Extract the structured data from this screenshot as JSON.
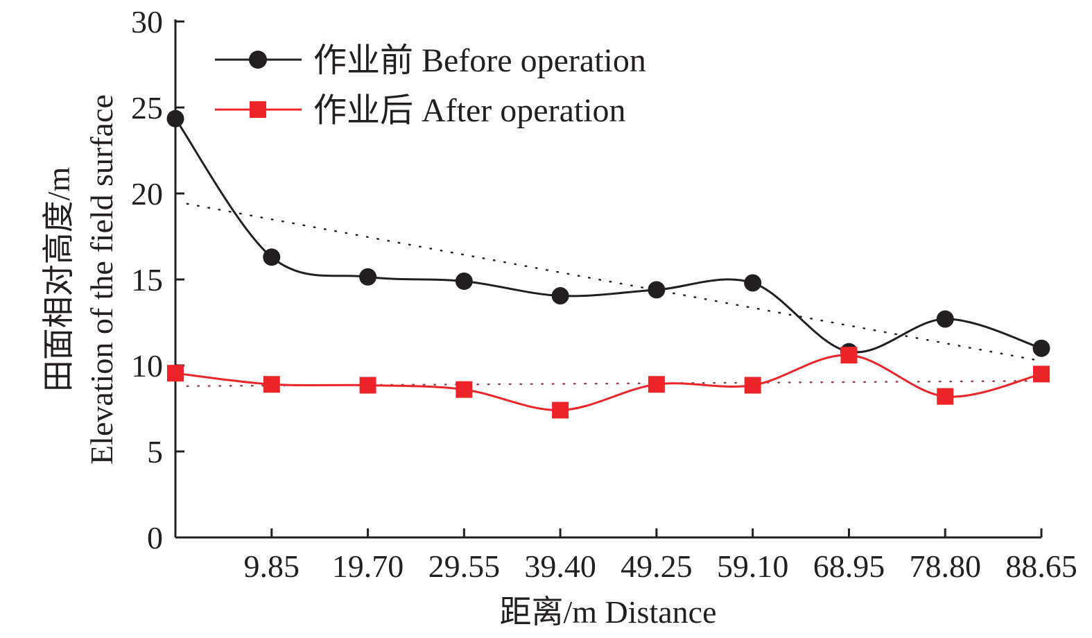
{
  "chart_data": {
    "type": "line",
    "title": "",
    "xlabel": "距离/m Distance",
    "ylabel": "田面相对高度/m Elevation of the field surface",
    "ylabel_cn": "田面相对高度/m",
    "ylabel_en": "Elevation of the field surface",
    "x": [
      0,
      9.85,
      19.7,
      29.55,
      39.4,
      49.25,
      59.1,
      68.95,
      78.8,
      88.65
    ],
    "x_tick_labels": [
      "9.85",
      "19.70",
      "29.55",
      "39.40",
      "49.25",
      "59.10",
      "68.95",
      "78.80",
      "88.65"
    ],
    "x_tick_values": [
      9.85,
      19.7,
      29.55,
      39.4,
      49.25,
      59.1,
      68.95,
      78.8,
      88.65
    ],
    "xlim": [
      0,
      88.65
    ],
    "ylim": [
      0,
      30
    ],
    "y_ticks": [
      0,
      5,
      10,
      15,
      20,
      25,
      30
    ],
    "y_tick_labels": [
      "0",
      "5",
      "10",
      "15",
      "20",
      "25",
      "30"
    ],
    "grid": false,
    "legend_position": "top-left",
    "series": [
      {
        "name": "作业前 Before operation",
        "color": "#231f20",
        "marker": "circle",
        "values": [
          24.35,
          16.3,
          15.15,
          14.9,
          14.05,
          14.4,
          14.8,
          10.8,
          12.7,
          11.0
        ],
        "trendline": {
          "x": [
            1.2,
            88.3
          ],
          "y": [
            19.4,
            10.3
          ]
        }
      },
      {
        "name": "作业后 After operation",
        "color": "#ee2528",
        "marker": "square",
        "values": [
          9.55,
          8.9,
          8.85,
          8.6,
          7.4,
          8.9,
          8.85,
          10.6,
          8.2,
          9.5
        ],
        "trendline": {
          "x": [
            1.2,
            88.3
          ],
          "y": [
            8.8,
            9.1
          ]
        }
      }
    ]
  }
}
